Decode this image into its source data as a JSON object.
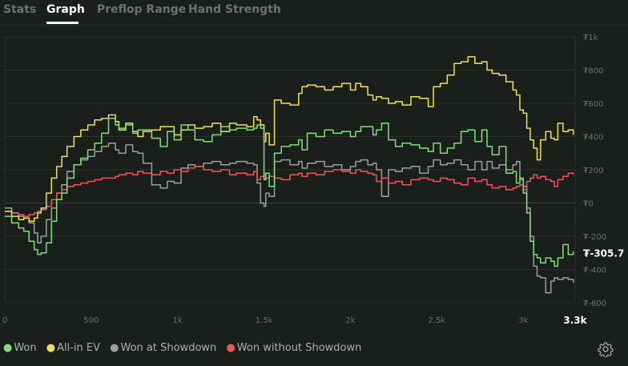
{
  "tabs": [
    {
      "label": "Stats",
      "active": false
    },
    {
      "label": "Graph",
      "active": true
    },
    {
      "label": "Preflop Range",
      "active": false
    },
    {
      "label": "Hand Strength",
      "active": false
    }
  ],
  "chart_data": {
    "type": "line",
    "title": "",
    "xlabel": "",
    "ylabel": "",
    "xlim": [
      0,
      3300
    ],
    "ylim": [
      -600,
      1000
    ],
    "x_ticks": [
      0,
      500,
      1000,
      1500,
      2000,
      2500,
      3000
    ],
    "x_tick_labels": [
      "0",
      "500",
      "1k",
      "1.5k",
      "2k",
      "2.5k",
      "3k"
    ],
    "x_end_label": "3.3k",
    "y_ticks": [
      -600,
      -400,
      -200,
      0,
      200,
      400,
      600,
      800,
      1000
    ],
    "y_tick_labels": [
      "₮-600",
      "₮-400",
      "₮-200",
      "₮0",
      "₮200",
      "₮400",
      "₮600",
      "₮800",
      "₮1k"
    ],
    "current_value_label": "₮-305.7",
    "grid": true,
    "legend_position": "bottom-left",
    "series": [
      {
        "name": "Won",
        "color": "#7ee07a",
        "x": [
          0,
          40,
          80,
          110,
          140,
          170,
          190,
          210,
          240,
          270,
          300,
          330,
          360,
          400,
          440,
          480,
          520,
          560,
          600,
          640,
          660,
          700,
          740,
          770,
          800,
          850,
          900,
          940,
          980,
          1020,
          1060,
          1100,
          1150,
          1200,
          1250,
          1300,
          1340,
          1400,
          1440,
          1460,
          1480,
          1500,
          1510,
          1530,
          1560,
          1600,
          1650,
          1700,
          1720,
          1750,
          1800,
          1850,
          1900,
          1950,
          2000,
          2030,
          2060,
          2100,
          2130,
          2150,
          2180,
          2220,
          2260,
          2300,
          2350,
          2400,
          2450,
          2480,
          2520,
          2560,
          2600,
          2640,
          2680,
          2720,
          2760,
          2790,
          2820,
          2860,
          2900,
          2940,
          2960,
          2980,
          3000,
          3020,
          3040,
          3060,
          3080,
          3100,
          3130,
          3160,
          3180,
          3200,
          3230,
          3260,
          3290
        ],
        "y": [
          -80,
          -120,
          -150,
          -170,
          -230,
          -280,
          -310,
          -300,
          -240,
          -110,
          20,
          60,
          150,
          230,
          270,
          320,
          360,
          420,
          510,
          470,
          450,
          470,
          420,
          440,
          440,
          390,
          340,
          430,
          380,
          470,
          440,
          380,
          370,
          410,
          460,
          440,
          450,
          440,
          450,
          470,
          450,
          140,
          180,
          100,
          300,
          340,
          350,
          380,
          320,
          420,
          400,
          440,
          420,
          430,
          400,
          430,
          460,
          460,
          410,
          440,
          480,
          380,
          340,
          360,
          350,
          330,
          310,
          360,
          300,
          330,
          360,
          430,
          440,
          370,
          440,
          340,
          290,
          340,
          180,
          190,
          120,
          150,
          60,
          -60,
          -230,
          -310,
          -330,
          -360,
          -330,
          -350,
          -380,
          -330,
          -250,
          -310,
          -290
        ]
      },
      {
        "name": "All-in EV",
        "color": "#f0e157",
        "x": [
          0,
          40,
          80,
          110,
          140,
          170,
          190,
          210,
          240,
          270,
          300,
          330,
          360,
          400,
          440,
          480,
          520,
          560,
          600,
          640,
          660,
          700,
          740,
          770,
          800,
          850,
          900,
          940,
          980,
          1020,
          1060,
          1100,
          1150,
          1200,
          1250,
          1300,
          1340,
          1400,
          1440,
          1460,
          1480,
          1500,
          1510,
          1530,
          1560,
          1600,
          1650,
          1700,
          1720,
          1750,
          1800,
          1850,
          1900,
          1950,
          2000,
          2030,
          2060,
          2100,
          2130,
          2150,
          2180,
          2220,
          2260,
          2300,
          2350,
          2400,
          2450,
          2480,
          2520,
          2560,
          2600,
          2640,
          2680,
          2720,
          2760,
          2790,
          2820,
          2860,
          2900,
          2940,
          2960,
          2980,
          3000,
          3020,
          3040,
          3060,
          3080,
          3100,
          3130,
          3160,
          3180,
          3200,
          3230,
          3260,
          3290
        ],
        "y": [
          -50,
          -80,
          -100,
          -90,
          -110,
          -90,
          -60,
          -30,
          60,
          150,
          220,
          280,
          340,
          400,
          440,
          470,
          500,
          510,
          530,
          490,
          440,
          480,
          430,
          400,
          430,
          440,
          460,
          460,
          410,
          440,
          470,
          450,
          460,
          480,
          430,
          480,
          470,
          460,
          520,
          500,
          470,
          370,
          420,
          350,
          620,
          600,
          590,
          660,
          700,
          710,
          700,
          680,
          700,
          720,
          680,
          720,
          700,
          650,
          620,
          640,
          630,
          600,
          610,
          590,
          640,
          630,
          580,
          700,
          720,
          770,
          840,
          850,
          880,
          840,
          850,
          800,
          780,
          770,
          730,
          680,
          650,
          560,
          540,
          450,
          380,
          330,
          260,
          380,
          430,
          390,
          380,
          480,
          430,
          440,
          410
        ]
      },
      {
        "name": "Won at Showdown",
        "color": "#9aa09b",
        "x": [
          0,
          40,
          80,
          110,
          140,
          170,
          190,
          210,
          240,
          270,
          300,
          330,
          360,
          400,
          440,
          480,
          520,
          560,
          600,
          640,
          660,
          700,
          740,
          770,
          800,
          850,
          900,
          940,
          980,
          1020,
          1060,
          1100,
          1150,
          1200,
          1250,
          1300,
          1340,
          1400,
          1440,
          1460,
          1480,
          1500,
          1510,
          1530,
          1560,
          1600,
          1650,
          1700,
          1720,
          1750,
          1800,
          1850,
          1900,
          1950,
          2000,
          2030,
          2060,
          2100,
          2130,
          2150,
          2180,
          2220,
          2260,
          2300,
          2350,
          2400,
          2450,
          2480,
          2520,
          2560,
          2600,
          2640,
          2680,
          2720,
          2760,
          2790,
          2820,
          2860,
          2900,
          2940,
          2960,
          2980,
          3000,
          3020,
          3040,
          3060,
          3080,
          3100,
          3130,
          3160,
          3180,
          3200,
          3230,
          3260,
          3290
        ],
        "y": [
          -30,
          -60,
          -80,
          -90,
          -120,
          -180,
          -240,
          -200,
          -100,
          -30,
          60,
          110,
          190,
          230,
          260,
          280,
          310,
          340,
          360,
          320,
          300,
          350,
          310,
          300,
          240,
          110,
          90,
          130,
          120,
          210,
          230,
          220,
          240,
          250,
          230,
          240,
          250,
          240,
          230,
          120,
          0,
          -20,
          60,
          40,
          250,
          260,
          230,
          250,
          210,
          240,
          250,
          220,
          230,
          200,
          220,
          250,
          260,
          230,
          240,
          200,
          40,
          200,
          190,
          210,
          220,
          180,
          220,
          260,
          230,
          240,
          260,
          230,
          200,
          250,
          200,
          250,
          210,
          230,
          200,
          230,
          250,
          140,
          100,
          -30,
          -200,
          -380,
          -440,
          -450,
          -540,
          -470,
          -450,
          -460,
          -450,
          -460,
          -480
        ]
      },
      {
        "name": "Won without Showdown",
        "color": "#e85a5a",
        "x": [
          0,
          40,
          80,
          110,
          140,
          170,
          190,
          210,
          240,
          270,
          300,
          330,
          360,
          400,
          440,
          480,
          520,
          560,
          600,
          640,
          660,
          700,
          740,
          770,
          800,
          850,
          900,
          940,
          980,
          1020,
          1060,
          1100,
          1150,
          1200,
          1250,
          1300,
          1340,
          1400,
          1440,
          1460,
          1480,
          1500,
          1510,
          1530,
          1560,
          1600,
          1650,
          1700,
          1720,
          1750,
          1800,
          1850,
          1900,
          1950,
          2000,
          2030,
          2060,
          2100,
          2130,
          2150,
          2180,
          2220,
          2260,
          2300,
          2350,
          2400,
          2450,
          2480,
          2520,
          2560,
          2600,
          2640,
          2680,
          2720,
          2760,
          2790,
          2820,
          2860,
          2900,
          2940,
          2960,
          2980,
          3000,
          3020,
          3040,
          3060,
          3080,
          3100,
          3130,
          3160,
          3180,
          3200,
          3230,
          3260,
          3290
        ],
        "y": [
          -50,
          -60,
          -70,
          -80,
          -70,
          -60,
          -50,
          -40,
          -20,
          20,
          60,
          80,
          100,
          110,
          120,
          130,
          140,
          150,
          150,
          160,
          170,
          180,
          170,
          190,
          180,
          170,
          190,
          180,
          200,
          190,
          210,
          220,
          200,
          190,
          200,
          170,
          180,
          170,
          190,
          140,
          160,
          170,
          150,
          160,
          150,
          140,
          170,
          180,
          160,
          180,
          170,
          190,
          200,
          190,
          180,
          200,
          190,
          180,
          170,
          130,
          150,
          120,
          130,
          110,
          140,
          150,
          140,
          130,
          150,
          140,
          120,
          110,
          150,
          130,
          140,
          110,
          90,
          100,
          80,
          90,
          100,
          110,
          80,
          130,
          150,
          170,
          150,
          160,
          140,
          130,
          100,
          140,
          160,
          180,
          170
        ]
      }
    ]
  },
  "settings_icon": "gear-icon"
}
